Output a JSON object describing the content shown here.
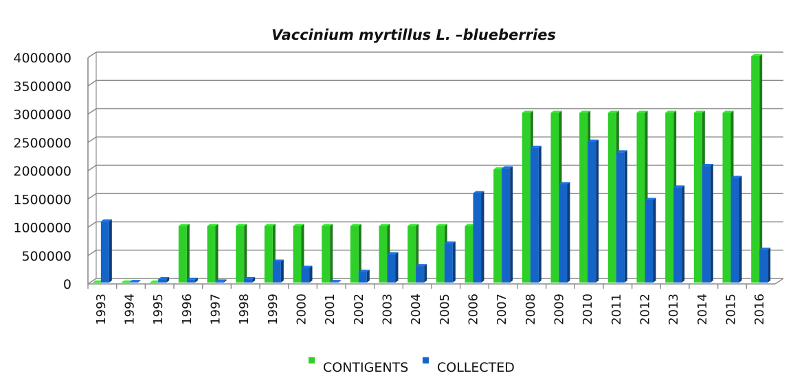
{
  "chart_data": {
    "type": "bar",
    "title": "Vaccinium myrtillus L. –blueberries",
    "xlabel": "",
    "ylabel": "",
    "categories": [
      "1993",
      "1994",
      "1995",
      "1996",
      "1997",
      "1998",
      "1999",
      "2000",
      "2001",
      "2002",
      "2003",
      "2004",
      "2005",
      "2006",
      "2007",
      "2008",
      "2009",
      "2010",
      "2011",
      "2012",
      "2013",
      "2014",
      "2015",
      "2016"
    ],
    "series": [
      {
        "name": "CONTIGENTS",
        "color": "#2fcf2a",
        "values": [
          0,
          0,
          0,
          1000000,
          1000000,
          1000000,
          1000000,
          1000000,
          1000000,
          1000000,
          1000000,
          1000000,
          1000000,
          1000000,
          2000000,
          3000000,
          3000000,
          3000000,
          3000000,
          3000000,
          3000000,
          3000000,
          3000000,
          4000000
        ]
      },
      {
        "name": "COLLECTED",
        "color": "#1565c8",
        "values": [
          1080000,
          10000,
          60000,
          50000,
          20000,
          60000,
          370000,
          260000,
          10000,
          190000,
          500000,
          290000,
          690000,
          1580000,
          2020000,
          2380000,
          1740000,
          2490000,
          2300000,
          1460000,
          1680000,
          2060000,
          1850000,
          580000
        ]
      }
    ],
    "ylim": [
      0,
      4000000
    ],
    "yticks": [
      0,
      500000,
      1000000,
      1500000,
      2000000,
      2500000,
      3000000,
      3500000,
      4000000
    ],
    "grid": true,
    "legend": "bottom"
  }
}
